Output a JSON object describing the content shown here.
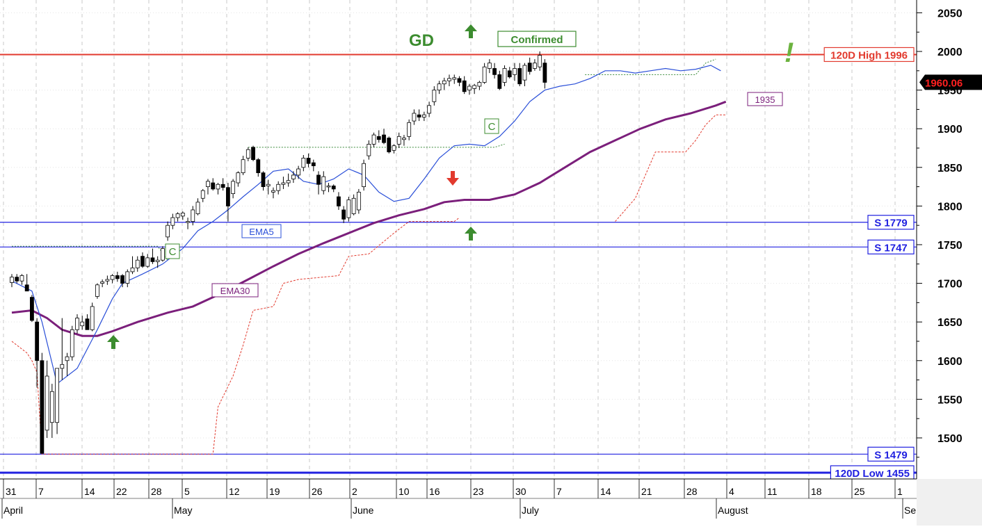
{
  "chart_data": {
    "type": "candlestick",
    "y_axis": {
      "ticks": [
        1500,
        1550,
        1600,
        1650,
        1700,
        1750,
        1800,
        1850,
        1900,
        1950,
        2000,
        2050
      ],
      "range": [
        1440,
        2060
      ],
      "side": "right"
    },
    "x_axis": {
      "day_ticks": [
        "31",
        "7",
        "14",
        "22",
        "28",
        "5",
        "12",
        "19",
        "26",
        "2",
        "10",
        "16",
        "23",
        "30",
        "7",
        "14",
        "21",
        "28",
        "4",
        "11",
        "18",
        "25",
        "1"
      ],
      "month_labels": [
        "April",
        "May",
        "June",
        "July",
        "August",
        "Sep"
      ]
    },
    "last_price": "1960.06",
    "levels": [
      {
        "label": "120D High 1996",
        "value": 1996,
        "color": "#e23a2e"
      },
      {
        "label": "S 1779",
        "value": 1779,
        "color": "#2020e0"
      },
      {
        "label": "S 1747",
        "value": 1747,
        "color": "#2020e0"
      },
      {
        "label": "S 1479",
        "value": 1479,
        "color": "#2020e0"
      },
      {
        "label": "120D Low 1455",
        "value": 1455,
        "color": "#2020e0"
      }
    ],
    "annotations": {
      "gd": "GD",
      "confirmed": "Confirmed",
      "exclaim": "!",
      "c_mark": "C",
      "ema5_label": "EMA5",
      "ema30_label": "EMA30",
      "ema30_value": "1935"
    },
    "candles": [
      [
        1701,
        1712,
        1695,
        1708
      ],
      [
        1708,
        1712,
        1700,
        1703
      ],
      [
        1703,
        1712,
        1698,
        1710
      ],
      [
        1698,
        1712,
        1690,
        1690
      ],
      [
        1682,
        1685,
        1650,
        1652
      ],
      [
        1650,
        1655,
        1565,
        1600
      ],
      [
        1600,
        1610,
        1480,
        1480
      ],
      [
        1510,
        1600,
        1500,
        1580
      ],
      [
        1520,
        1570,
        1500,
        1560
      ],
      [
        1520,
        1590,
        1505,
        1590
      ],
      [
        1590,
        1655,
        1575,
        1595
      ],
      [
        1600,
        1610,
        1580,
        1605
      ],
      [
        1605,
        1645,
        1600,
        1640
      ],
      [
        1640,
        1660,
        1635,
        1655
      ],
      [
        1645,
        1658,
        1640,
        1650
      ],
      [
        1654,
        1660,
        1640,
        1640
      ],
      [
        1640,
        1675,
        1638,
        1670
      ],
      [
        1683,
        1700,
        1680,
        1698
      ],
      [
        1700,
        1705,
        1695,
        1702
      ],
      [
        1703,
        1710,
        1698,
        1705
      ],
      [
        1705,
        1712,
        1700,
        1710
      ],
      [
        1710,
        1715,
        1702,
        1706
      ],
      [
        1710,
        1712,
        1695,
        1700
      ],
      [
        1700,
        1718,
        1695,
        1715
      ],
      [
        1715,
        1735,
        1712,
        1720
      ],
      [
        1720,
        1735,
        1715,
        1730
      ],
      [
        1735,
        1740,
        1720,
        1722
      ],
      [
        1722,
        1738,
        1720,
        1733
      ],
      [
        1733,
        1745,
        1725,
        1728
      ],
      [
        1728,
        1735,
        1720,
        1730
      ],
      [
        1730,
        1748,
        1728,
        1745
      ],
      [
        1760,
        1780,
        1755,
        1775
      ],
      [
        1775,
        1790,
        1770,
        1785
      ],
      [
        1785,
        1792,
        1780,
        1790
      ],
      [
        1787,
        1793,
        1782,
        1791
      ],
      [
        1780,
        1785,
        1770,
        1780
      ],
      [
        1780,
        1800,
        1775,
        1795
      ],
      [
        1790,
        1810,
        1788,
        1805
      ],
      [
        1810,
        1822,
        1805,
        1820
      ],
      [
        1825,
        1835,
        1815,
        1832
      ],
      [
        1830,
        1836,
        1820,
        1822
      ],
      [
        1822,
        1830,
        1815,
        1828
      ],
      [
        1828,
        1836,
        1820,
        1824
      ],
      [
        1824,
        1830,
        1780,
        1800
      ],
      [
        1816,
        1835,
        1810,
        1832
      ],
      [
        1830,
        1845,
        1825,
        1843
      ],
      [
        1843,
        1865,
        1840,
        1860
      ],
      [
        1862,
        1876,
        1858,
        1873
      ],
      [
        1876,
        1878,
        1858,
        1860
      ],
      [
        1860,
        1862,
        1838,
        1843
      ],
      [
        1843,
        1845,
        1820,
        1825
      ],
      [
        1826,
        1834,
        1815,
        1828
      ],
      [
        1818,
        1824,
        1810,
        1820
      ],
      [
        1820,
        1832,
        1815,
        1828
      ],
      [
        1828,
        1838,
        1822,
        1830
      ],
      [
        1830,
        1842,
        1825,
        1833
      ],
      [
        1835,
        1845,
        1830,
        1840
      ],
      [
        1840,
        1852,
        1835,
        1848
      ],
      [
        1850,
        1866,
        1845,
        1862
      ],
      [
        1862,
        1868,
        1850,
        1855
      ],
      [
        1856,
        1860,
        1845,
        1852
      ],
      [
        1840,
        1845,
        1815,
        1828
      ],
      [
        1820,
        1845,
        1815,
        1838
      ],
      [
        1826,
        1830,
        1818,
        1826
      ],
      [
        1826,
        1828,
        1818,
        1822
      ],
      [
        1812,
        1818,
        1795,
        1800
      ],
      [
        1795,
        1800,
        1778,
        1783
      ],
      [
        1785,
        1812,
        1780,
        1808
      ],
      [
        1790,
        1815,
        1788,
        1810
      ],
      [
        1795,
        1822,
        1790,
        1818
      ],
      [
        1825,
        1860,
        1820,
        1855
      ],
      [
        1865,
        1885,
        1860,
        1880
      ],
      [
        1880,
        1895,
        1876,
        1892
      ],
      [
        1890,
        1898,
        1882,
        1886
      ],
      [
        1892,
        1900,
        1880,
        1882
      ],
      [
        1888,
        1890,
        1868,
        1870
      ],
      [
        1872,
        1880,
        1868,
        1878
      ],
      [
        1880,
        1895,
        1875,
        1890
      ],
      [
        1886,
        1892,
        1878,
        1888
      ],
      [
        1890,
        1912,
        1885,
        1908
      ],
      [
        1910,
        1925,
        1905,
        1920
      ],
      [
        1918,
        1925,
        1910,
        1915
      ],
      [
        1915,
        1922,
        1910,
        1918
      ],
      [
        1920,
        1935,
        1915,
        1930
      ],
      [
        1935,
        1955,
        1930,
        1950
      ],
      [
        1950,
        1962,
        1945,
        1958
      ],
      [
        1958,
        1966,
        1950,
        1962
      ],
      [
        1962,
        1970,
        1955,
        1965
      ],
      [
        1964,
        1970,
        1958,
        1966
      ],
      [
        1965,
        1968,
        1955,
        1960
      ],
      [
        1962,
        1968,
        1945,
        1948
      ],
      [
        1950,
        1958,
        1944,
        1955
      ],
      [
        1952,
        1958,
        1945,
        1956
      ],
      [
        1955,
        1962,
        1950,
        1960
      ],
      [
        1960,
        1985,
        1958,
        1980
      ],
      [
        1978,
        1990,
        1972,
        1985
      ],
      [
        1978,
        1985,
        1965,
        1970
      ],
      [
        1970,
        1975,
        1950,
        1952
      ],
      [
        1960,
        1982,
        1955,
        1978
      ],
      [
        1975,
        1980,
        1965,
        1967
      ],
      [
        1970,
        1985,
        1962,
        1978
      ],
      [
        1978,
        1985,
        1955,
        1958
      ],
      [
        1963,
        1985,
        1955,
        1982
      ],
      [
        1985,
        1992,
        1970,
        1974
      ],
      [
        1978,
        1990,
        1975,
        1985
      ],
      [
        1980,
        2000,
        1975,
        1995
      ],
      [
        1985,
        1990,
        1952,
        1960
      ]
    ],
    "ema5": [
      [
        0,
        1703
      ],
      [
        4,
        1690
      ],
      [
        6,
        1650
      ],
      [
        9,
        1570
      ],
      [
        13,
        1590
      ],
      [
        17,
        1640
      ],
      [
        20,
        1680
      ],
      [
        22,
        1700
      ],
      [
        26,
        1712
      ],
      [
        30,
        1725
      ],
      [
        34,
        1745
      ],
      [
        37,
        1768
      ],
      [
        40,
        1780
      ],
      [
        43,
        1795
      ],
      [
        46,
        1812
      ],
      [
        49,
        1828
      ],
      [
        52,
        1845
      ],
      [
        55,
        1848
      ],
      [
        58,
        1832
      ],
      [
        61,
        1828
      ],
      [
        64,
        1835
      ],
      [
        67,
        1848
      ],
      [
        70,
        1840
      ],
      [
        73,
        1818
      ],
      [
        76,
        1806
      ],
      [
        79,
        1810
      ],
      [
        82,
        1835
      ],
      [
        85,
        1862
      ],
      [
        88,
        1878
      ],
      [
        91,
        1880
      ],
      [
        94,
        1878
      ],
      [
        97,
        1890
      ],
      [
        100,
        1910
      ],
      [
        103,
        1935
      ],
      [
        106,
        1950
      ],
      [
        109,
        1955
      ],
      [
        112,
        1958
      ],
      [
        115,
        1965
      ],
      [
        118,
        1975
      ],
      [
        121,
        1975
      ],
      [
        124,
        1972
      ],
      [
        127,
        1975
      ],
      [
        130,
        1978
      ],
      [
        133,
        1975
      ],
      [
        136,
        1977
      ],
      [
        139,
        1982
      ],
      [
        141,
        1975
      ]
    ],
    "ema30": [
      [
        0,
        1662
      ],
      [
        4,
        1665
      ],
      [
        7,
        1655
      ],
      [
        10,
        1640
      ],
      [
        14,
        1632
      ],
      [
        17,
        1632
      ],
      [
        20,
        1638
      ],
      [
        25,
        1650
      ],
      [
        31,
        1662
      ],
      [
        36,
        1670
      ],
      [
        41,
        1685
      ],
      [
        47,
        1705
      ],
      [
        52,
        1722
      ],
      [
        57,
        1738
      ],
      [
        62,
        1752
      ],
      [
        67,
        1765
      ],
      [
        72,
        1778
      ],
      [
        77,
        1788
      ],
      [
        82,
        1796
      ],
      [
        86,
        1805
      ],
      [
        90,
        1808
      ],
      [
        95,
        1808
      ],
      [
        100,
        1815
      ],
      [
        105,
        1830
      ],
      [
        110,
        1850
      ],
      [
        115,
        1870
      ],
      [
        120,
        1885
      ],
      [
        125,
        1900
      ],
      [
        130,
        1912
      ],
      [
        135,
        1920
      ],
      [
        140,
        1930
      ],
      [
        142,
        1935
      ]
    ]
  }
}
